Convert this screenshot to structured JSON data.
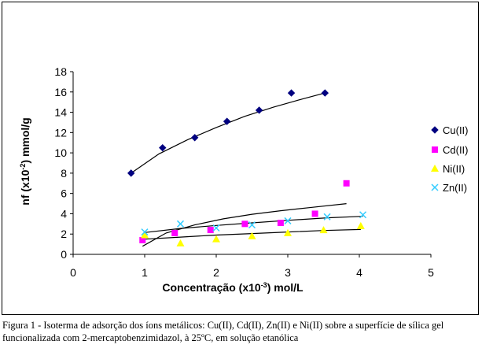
{
  "chart_data": {
    "type": "scatter",
    "xlabel_main": "Concentração (x10",
    "xlabel_sup": "-3",
    "xlabel_unit": ") mol/L",
    "ylabel_main": "nf (x10",
    "ylabel_sup": "-2",
    "ylabel_unit": ") mmol/g",
    "xlim": [
      0,
      5
    ],
    "ylim": [
      0,
      18
    ],
    "xticks": [
      "0",
      "1",
      "2",
      "3",
      "4",
      "5"
    ],
    "yticks": [
      "0",
      "2",
      "4",
      "6",
      "8",
      "10",
      "12",
      "14",
      "16",
      "18"
    ],
    "grid": false,
    "legend_position": "right",
    "series": [
      {
        "name": "Cu(II)",
        "color": "#000080",
        "marker": "diamond-icon",
        "x": [
          0.81,
          1.25,
          1.7,
          2.15,
          2.6,
          3.05,
          3.52
        ],
        "y": [
          8.0,
          10.5,
          11.5,
          13.1,
          14.2,
          15.9,
          15.9
        ]
      },
      {
        "name": "Cd(II)",
        "color": "#ff00ff",
        "marker": "square-icon",
        "x": [
          0.97,
          1.42,
          1.92,
          2.4,
          2.9,
          3.38,
          3.82
        ],
        "y": [
          1.4,
          2.1,
          2.4,
          3.0,
          3.1,
          4.0,
          7.0
        ]
      },
      {
        "name": "Ni(II)",
        "color": "#ffff00",
        "marker": "triangle-icon",
        "x": [
          1.0,
          1.5,
          2.0,
          2.5,
          3.0,
          3.5,
          4.02
        ],
        "y": [
          1.9,
          1.1,
          1.5,
          1.8,
          2.1,
          2.4,
          2.8
        ]
      },
      {
        "name": "Zn(II)",
        "color": "#33ccff",
        "marker": "cross-icon",
        "x": [
          1.0,
          1.5,
          2.0,
          2.5,
          3.0,
          3.55,
          4.05
        ],
        "y": [
          2.2,
          3.0,
          2.6,
          2.9,
          3.3,
          3.7,
          3.9
        ]
      }
    ],
    "trendlines": [
      {
        "x": [
          0.81,
          1.2,
          1.6,
          2.0,
          2.4,
          2.8,
          3.2,
          3.52
        ],
        "y": [
          8.0,
          9.9,
          11.3,
          12.5,
          13.6,
          14.5,
          15.3,
          15.9
        ]
      },
      {
        "x": [
          0.97,
          1.3,
          1.7,
          2.1,
          2.5,
          2.9,
          3.3,
          3.82
        ],
        "y": [
          0.8,
          2.1,
          2.9,
          3.5,
          3.95,
          4.3,
          4.6,
          5.0
        ]
      },
      {
        "x": [
          1.0,
          1.5,
          2.0,
          2.5,
          3.0,
          3.5,
          4.02
        ],
        "y": [
          1.5,
          1.7,
          1.9,
          2.05,
          2.2,
          2.35,
          2.45
        ]
      },
      {
        "x": [
          1.0,
          1.5,
          2.0,
          2.5,
          3.0,
          3.55,
          4.05
        ],
        "y": [
          2.15,
          2.55,
          2.85,
          3.1,
          3.35,
          3.6,
          3.75
        ]
      }
    ]
  },
  "caption": "Figura 1 - Isoterma de adsorção dos íons metálicos: Cu(II), Cd(II), Zn(II) e Ni(II) sobre a superfície de sílica gel funcionalizada com 2-mercaptobenzimidazol, à 25ºC, em solução etanólica"
}
